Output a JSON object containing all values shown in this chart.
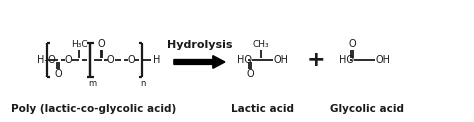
{
  "bg_color": "#ffffff",
  "line_color": "#1a1a1a",
  "text_color": "#1a1a1a",
  "fig_width": 4.74,
  "fig_height": 1.22,
  "dpi": 100,
  "label_plga": "Poly (lactic-co-glycolic acid)",
  "label_lactic": "Lactic acid",
  "label_glycolic": "Glycolic acid",
  "label_hydrolysis": "Hydrolysis"
}
